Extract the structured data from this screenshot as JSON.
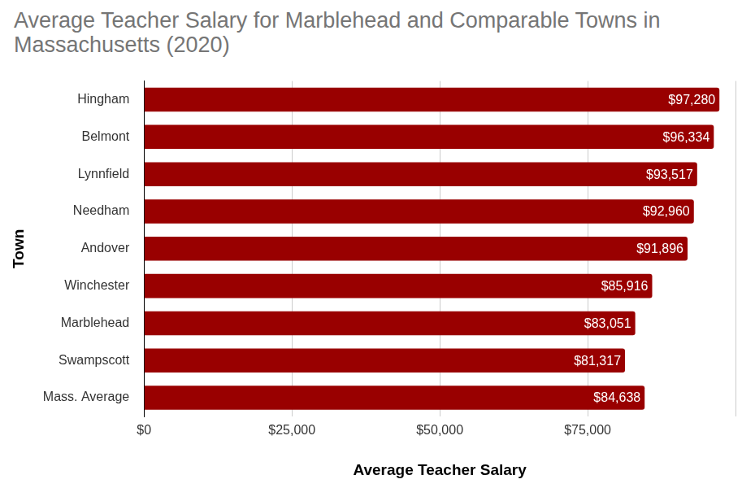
{
  "chart_data": {
    "type": "bar",
    "orientation": "horizontal",
    "title": "Average Teacher Salary for Marblehead and Comparable Towns in Massachusetts (2020)",
    "xlabel": "Average Teacher Salary",
    "ylabel": "Town",
    "categories": [
      "Hingham",
      "Belmont",
      "Lynnfield",
      "Needham",
      "Andover",
      "Winchester",
      "Marblehead",
      "Swampscott",
      "Mass. Average"
    ],
    "values": [
      97280,
      96334,
      93517,
      92960,
      91896,
      85916,
      83051,
      81317,
      84638
    ],
    "value_labels": [
      "$97,280",
      "$96,334",
      "$93,517",
      "$92,960",
      "$91,896",
      "$85,916",
      "$83,051",
      "$81,317",
      "$84,638"
    ],
    "color": "#990000",
    "xlim": [
      0,
      100000
    ],
    "xticks": [
      {
        "value": 0,
        "label": "$0"
      },
      {
        "value": 25000,
        "label": "$25,000"
      },
      {
        "value": 50000,
        "label": "$50,000"
      },
      {
        "value": 75000,
        "label": "$75,000"
      }
    ],
    "grid": true,
    "data_labels": true
  }
}
